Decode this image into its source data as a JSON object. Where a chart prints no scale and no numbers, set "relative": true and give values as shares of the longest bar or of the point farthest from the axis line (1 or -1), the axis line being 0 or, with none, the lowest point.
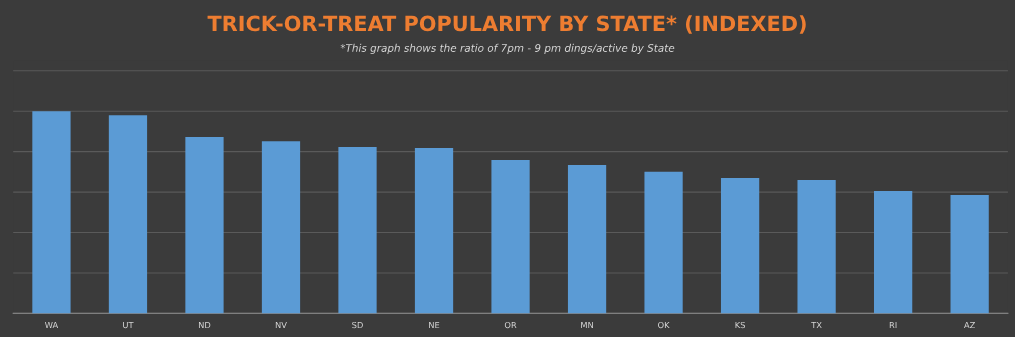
{
  "chart_data": {
    "type": "bar",
    "title": "TRICK-OR-TREAT POPULARITY BY STATE* (INDEXED)",
    "subtitle": "*This graph shows the ratio of 7pm - 9 pm dings/active by State",
    "categories": [
      "WA",
      "UT",
      "ND",
      "NV",
      "SD",
      "NE",
      "OR",
      "MN",
      "OK",
      "KS",
      "TX",
      "RI",
      "AZ"
    ],
    "values": [
      1,
      0.98,
      0.872,
      0.852,
      0.823,
      0.818,
      0.759,
      0.734,
      0.7,
      0.67,
      0.66,
      0.606,
      0.586
    ],
    "color": "#5b9bd5",
    "relative": true,
    "grid": "y"
  }
}
